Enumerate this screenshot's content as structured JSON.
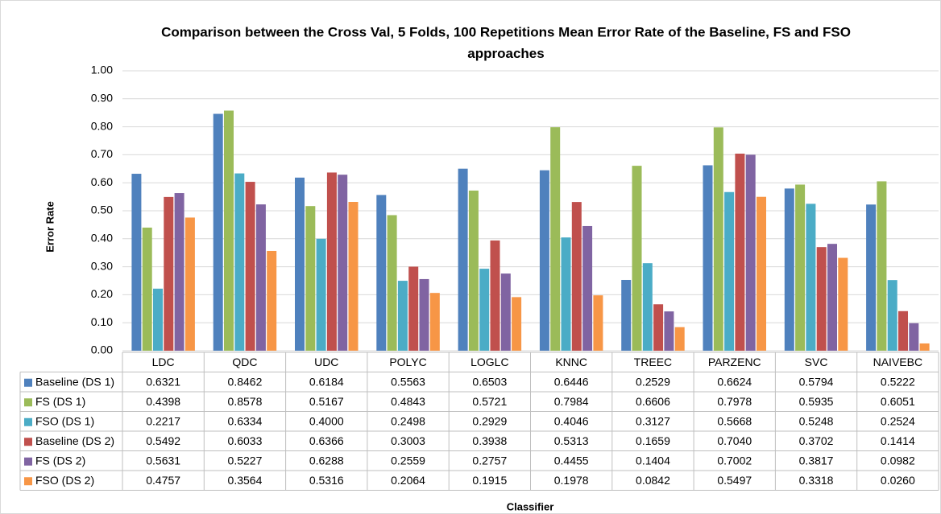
{
  "chart_data": {
    "type": "bar",
    "title": "Comparison between the Cross Val, 5 Folds, 100 Repetitions Mean Error Rate of the Baseline, FS and FSO approaches",
    "y_label": "Error Rate",
    "x_label": "Classifier",
    "categories": [
      "LDC",
      "QDC",
      "UDC",
      "POLYC",
      "LOGLC",
      "KNNC",
      "TREEC",
      "PARZENC",
      "SVC",
      "NAIVEBC"
    ],
    "ylim": [
      0,
      1
    ],
    "yticks": [
      {
        "value": 0,
        "label": "0.00"
      },
      {
        "value": 0.1,
        "label": "0.10"
      },
      {
        "value": 0.2,
        "label": "0.20"
      },
      {
        "value": 0.3,
        "label": "0.30"
      },
      {
        "value": 0.4,
        "label": "0.40"
      },
      {
        "value": 0.5,
        "label": "0.50"
      },
      {
        "value": 0.6,
        "label": "0.60"
      },
      {
        "value": 0.7,
        "label": "0.70"
      },
      {
        "value": 0.8,
        "label": "0.80"
      },
      {
        "value": 0.9,
        "label": "0.90"
      },
      {
        "value": 1,
        "label": "1.00"
      }
    ],
    "grid": true,
    "series": [
      {
        "name": "Baseline (DS 1)",
        "color": "#4f81bd",
        "values": [
          0.6321,
          0.8462,
          0.6184,
          0.5563,
          0.6503,
          0.6446,
          0.2529,
          0.6624,
          0.5794,
          0.5222
        ],
        "value_labels": [
          "0.6321",
          "0.8462",
          "0.6184",
          "0.5563",
          "0.6503",
          "0.6446",
          "0.2529",
          "0.6624",
          "0.5794",
          "0.5222"
        ]
      },
      {
        "name": "FS (DS 1)",
        "color": "#9bbb59",
        "values": [
          0.4398,
          0.8578,
          0.5167,
          0.4843,
          0.5721,
          0.7984,
          0.6606,
          0.7978,
          0.5935,
          0.6051
        ],
        "value_labels": [
          "0.4398",
          "0.8578",
          "0.5167",
          "0.4843",
          "0.5721",
          "0.7984",
          "0.6606",
          "0.7978",
          "0.5935",
          "0.6051"
        ]
      },
      {
        "name": "FSO (DS 1)",
        "color": "#4bacc6",
        "values": [
          0.2217,
          0.6334,
          0.4,
          0.2498,
          0.2929,
          0.4046,
          0.3127,
          0.5668,
          0.5248,
          0.2524
        ],
        "value_labels": [
          "0.2217",
          "0.6334",
          "0.4000",
          "0.2498",
          "0.2929",
          "0.4046",
          "0.3127",
          "0.5668",
          "0.5248",
          "0.2524"
        ]
      },
      {
        "name": "Baseline (DS 2)",
        "color": "#c0504d",
        "values": [
          0.5492,
          0.6033,
          0.6366,
          0.3003,
          0.3938,
          0.5313,
          0.1659,
          0.704,
          0.3702,
          0.1414
        ],
        "value_labels": [
          "0.5492",
          "0.6033",
          "0.6366",
          "0.3003",
          "0.3938",
          "0.5313",
          "0.1659",
          "0.7040",
          "0.3702",
          "0.1414"
        ]
      },
      {
        "name": "FS (DS 2)",
        "color": "#8064a2",
        "values": [
          0.5631,
          0.5227,
          0.6288,
          0.2559,
          0.2757,
          0.4455,
          0.1404,
          0.7002,
          0.3817,
          0.0982
        ],
        "value_labels": [
          "0.5631",
          "0.5227",
          "0.6288",
          "0.2559",
          "0.2757",
          "0.4455",
          "0.1404",
          "0.7002",
          "0.3817",
          "0.0982"
        ]
      },
      {
        "name": "FSO (DS 2)",
        "color": "#f79646",
        "values": [
          0.4757,
          0.3564,
          0.5316,
          0.2064,
          0.1915,
          0.1978,
          0.0842,
          0.5497,
          0.3318,
          0.026
        ],
        "value_labels": [
          "0.4757",
          "0.3564",
          "0.5316",
          "0.2064",
          "0.1915",
          "0.1978",
          "0.0842",
          "0.5497",
          "0.3318",
          "0.0260"
        ]
      }
    ]
  }
}
